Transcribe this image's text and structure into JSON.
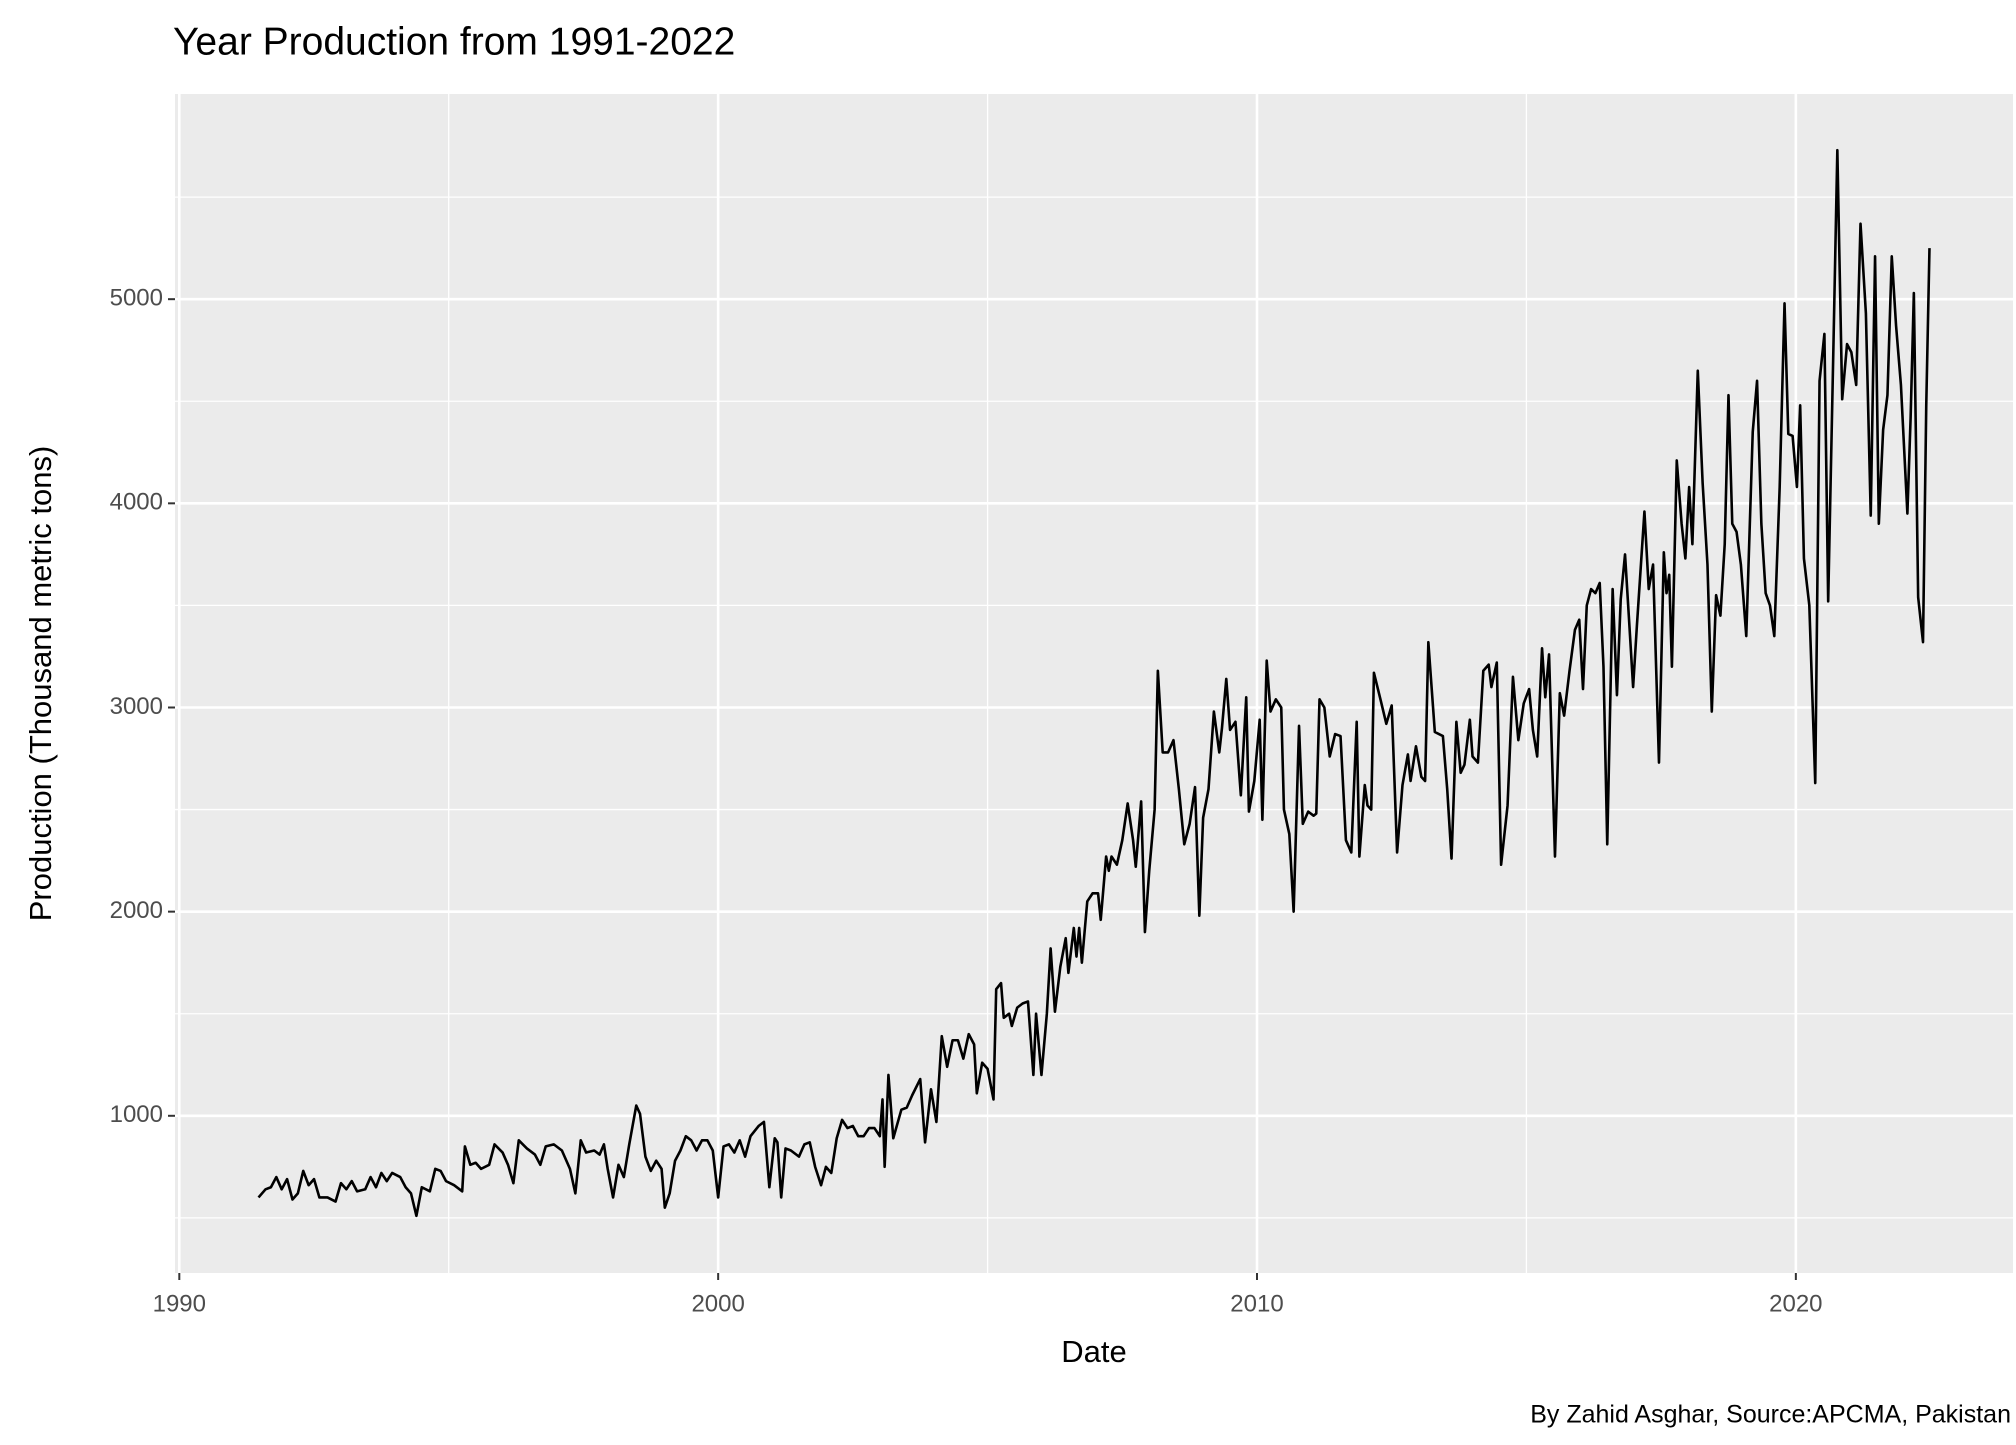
{
  "chart_data": {
    "type": "line",
    "title": "Year Production from 1991-2022",
    "x_label": "Date",
    "y_label": "Production (Thousand metric tons)",
    "caption": "By Zahid Asghar, Source:APCMA, Pakistan",
    "color": "#000000",
    "grid": true,
    "xlim": [
      1989.92,
      2024.03
    ],
    "xticks": [
      1990,
      2000,
      2010,
      2020
    ],
    "ylim": [
      230,
      6005
    ],
    "yticks": [
      1000,
      2000,
      3000,
      4000,
      5000
    ],
    "x": [
      1991.47,
      1991.6,
      1991.7,
      1991.8,
      1991.9,
      1992.0,
      1992.1,
      1992.2,
      1992.3,
      1992.4,
      1992.5,
      1992.6,
      1992.75,
      1992.9,
      1993.0,
      1993.1,
      1993.2,
      1993.3,
      1993.45,
      1993.55,
      1993.65,
      1993.75,
      1993.85,
      1993.95,
      1994.1,
      1994.2,
      1994.3,
      1994.4,
      1994.5,
      1994.65,
      1994.75,
      1994.85,
      1994.95,
      1995.1,
      1995.25,
      1995.3,
      1995.4,
      1995.5,
      1995.6,
      1995.75,
      1995.85,
      1996.0,
      1996.1,
      1996.2,
      1996.3,
      1996.45,
      1996.6,
      1996.7,
      1996.8,
      1996.95,
      1997.1,
      1997.25,
      1997.35,
      1997.45,
      1997.55,
      1997.7,
      1997.8,
      1997.88,
      1997.95,
      1998.05,
      1998.15,
      1998.25,
      1998.35,
      1998.48,
      1998.55,
      1998.65,
      1998.75,
      1998.85,
      1998.95,
      1999.01,
      1999.1,
      1999.2,
      1999.3,
      1999.4,
      1999.5,
      1999.6,
      1999.7,
      1999.8,
      1999.9,
      2000.0,
      2000.1,
      2000.2,
      2000.3,
      2000.4,
      2000.5,
      2000.6,
      2000.75,
      2000.85,
      2000.95,
      2001.05,
      2001.1,
      2001.17,
      2001.25,
      2001.35,
      2001.5,
      2001.6,
      2001.7,
      2001.8,
      2001.91,
      2002.0,
      2002.1,
      2002.2,
      2002.3,
      2002.4,
      2002.5,
      2002.6,
      2002.7,
      2002.8,
      2002.9,
      2003.0,
      2003.05,
      2003.09,
      2003.16,
      2003.25,
      2003.4,
      2003.5,
      2003.6,
      2003.75,
      2003.84,
      2003.95,
      2004.05,
      2004.15,
      2004.25,
      2004.35,
      2004.45,
      2004.55,
      2004.65,
      2004.75,
      2004.8,
      2004.9,
      2005.0,
      2005.11,
      2005.16,
      2005.25,
      2005.3,
      2005.4,
      2005.45,
      2005.55,
      2005.65,
      2005.75,
      2005.85,
      2005.9,
      2006.0,
      2006.1,
      2006.17,
      2006.25,
      2006.35,
      2006.45,
      2006.5,
      2006.6,
      2006.65,
      2006.7,
      2006.75,
      2006.85,
      2006.95,
      2007.05,
      2007.1,
      2007.2,
      2007.25,
      2007.3,
      2007.4,
      2007.5,
      2007.6,
      2007.7,
      2007.75,
      2007.85,
      2007.92,
      2008.0,
      2008.1,
      2008.16,
      2008.25,
      2008.35,
      2008.45,
      2008.55,
      2008.65,
      2008.75,
      2008.85,
      2008.93,
      2009.0,
      2009.1,
      2009.2,
      2009.3,
      2009.35,
      2009.43,
      2009.5,
      2009.6,
      2009.7,
      2009.8,
      2009.85,
      2009.95,
      2010.05,
      2010.1,
      2010.18,
      2010.25,
      2010.35,
      2010.45,
      2010.5,
      2010.6,
      2010.68,
      2010.78,
      2010.85,
      2010.95,
      2011.05,
      2011.1,
      2011.16,
      2011.25,
      2011.35,
      2011.45,
      2011.55,
      2011.65,
      2011.75,
      2011.85,
      2011.9,
      2012.0,
      2012.05,
      2012.12,
      2012.17,
      2012.3,
      2012.4,
      2012.5,
      2012.6,
      2012.7,
      2012.8,
      2012.85,
      2012.95,
      2013.05,
      2013.12,
      2013.18,
      2013.3,
      2013.45,
      2013.53,
      2013.61,
      2013.7,
      2013.78,
      2013.85,
      2013.95,
      2014.0,
      2014.1,
      2014.2,
      2014.3,
      2014.35,
      2014.45,
      2014.53,
      2014.65,
      2014.75,
      2014.85,
      2014.95,
      2015.05,
      2015.12,
      2015.2,
      2015.29,
      2015.35,
      2015.42,
      2015.53,
      2015.62,
      2015.7,
      2015.8,
      2015.9,
      2015.98,
      2016.05,
      2016.12,
      2016.2,
      2016.28,
      2016.36,
      2016.43,
      2016.5,
      2016.6,
      2016.68,
      2016.75,
      2016.83,
      2016.9,
      2016.98,
      2017.05,
      2017.19,
      2017.27,
      2017.35,
      2017.46,
      2017.55,
      2017.6,
      2017.65,
      2017.7,
      2017.79,
      2017.88,
      2017.95,
      2018.02,
      2018.08,
      2018.18,
      2018.27,
      2018.36,
      2018.44,
      2018.52,
      2018.6,
      2018.68,
      2018.75,
      2018.82,
      2018.9,
      2018.98,
      2019.08,
      2019.2,
      2019.28,
      2019.36,
      2019.44,
      2019.52,
      2019.6,
      2019.7,
      2019.79,
      2019.86,
      2019.94,
      2020.02,
      2020.08,
      2020.15,
      2020.25,
      2020.36,
      2020.44,
      2020.53,
      2020.6,
      2020.7,
      2020.77,
      2020.86,
      2020.95,
      2021.03,
      2021.12,
      2021.2,
      2021.3,
      2021.39,
      2021.47,
      2021.54,
      2021.62,
      2021.7,
      2021.78,
      2021.86,
      2021.95,
      2022.07,
      2022.13,
      2022.19,
      2022.27,
      2022.36,
      2022.42,
      2022.48
    ],
    "values": [
      600,
      640,
      650,
      700,
      640,
      690,
      590,
      620,
      730,
      660,
      690,
      600,
      600,
      580,
      670,
      640,
      680,
      630,
      640,
      700,
      650,
      720,
      680,
      720,
      700,
      650,
      620,
      510,
      650,
      630,
      740,
      730,
      680,
      660,
      630,
      850,
      760,
      770,
      740,
      760,
      860,
      820,
      760,
      670,
      880,
      840,
      810,
      760,
      850,
      860,
      830,
      740,
      620,
      880,
      820,
      830,
      810,
      860,
      740,
      600,
      760,
      700,
      860,
      1050,
      1010,
      800,
      730,
      780,
      740,
      550,
      620,
      780,
      830,
      900,
      880,
      830,
      880,
      880,
      830,
      600,
      850,
      860,
      820,
      880,
      800,
      900,
      950,
      970,
      650,
      890,
      870,
      600,
      840,
      830,
      800,
      860,
      870,
      750,
      660,
      750,
      720,
      890,
      980,
      940,
      950,
      900,
      900,
      940,
      940,
      900,
      1080,
      750,
      1200,
      890,
      1030,
      1040,
      1100,
      1180,
      870,
      1130,
      970,
      1390,
      1240,
      1370,
      1370,
      1280,
      1400,
      1350,
      1110,
      1260,
      1230,
      1080,
      1620,
      1650,
      1480,
      1500,
      1440,
      1530,
      1550,
      1560,
      1200,
      1500,
      1200,
      1500,
      1820,
      1510,
      1730,
      1870,
      1700,
      1920,
      1780,
      1920,
      1750,
      2050,
      2090,
      2090,
      1960,
      2270,
      2200,
      2270,
      2230,
      2350,
      2530,
      2350,
      2220,
      2540,
      1900,
      2200,
      2500,
      3180,
      2780,
      2780,
      2840,
      2600,
      2330,
      2430,
      2610,
      1980,
      2460,
      2600,
      2980,
      2780,
      2900,
      3140,
      2890,
      2930,
      2570,
      3050,
      2490,
      2640,
      2940,
      2450,
      3230,
      2980,
      3040,
      3000,
      2500,
      2380,
      2000,
      2910,
      2430,
      2490,
      2470,
      2480,
      3040,
      3000,
      2760,
      2870,
      2860,
      2350,
      2290,
      2930,
      2270,
      2620,
      2520,
      2500,
      3170,
      3030,
      2920,
      3010,
      2290,
      2620,
      2770,
      2640,
      2810,
      2660,
      2640,
      3320,
      2880,
      2860,
      2600,
      2260,
      2930,
      2680,
      2720,
      2940,
      2760,
      2730,
      3180,
      3210,
      3100,
      3220,
      2230,
      2520,
      3150,
      2840,
      3020,
      3090,
      2890,
      2760,
      3290,
      3050,
      3260,
      2270,
      3070,
      2960,
      3180,
      3380,
      3430,
      3090,
      3500,
      3580,
      3560,
      3610,
      3200,
      2330,
      3580,
      3060,
      3530,
      3750,
      3450,
      3100,
      3400,
      3960,
      3580,
      3700,
      2730,
      3760,
      3560,
      3650,
      3200,
      4210,
      3900,
      3730,
      4080,
      3800,
      4650,
      4100,
      3700,
      2980,
      3550,
      3450,
      3800,
      4530,
      3900,
      3860,
      3700,
      3350,
      4350,
      4600,
      3900,
      3560,
      3500,
      3350,
      4080,
      4980,
      4340,
      4330,
      4080,
      4480,
      3730,
      3500,
      2630,
      4600,
      4830,
      3520,
      4800,
      5730,
      4510,
      4780,
      4740,
      4580,
      5370,
      4930,
      3940,
      5210,
      3900,
      4360,
      4530,
      5210,
      4870,
      4580,
      3950,
      4420,
      5030,
      3540,
      3320,
      4480,
      5250
    ]
  }
}
